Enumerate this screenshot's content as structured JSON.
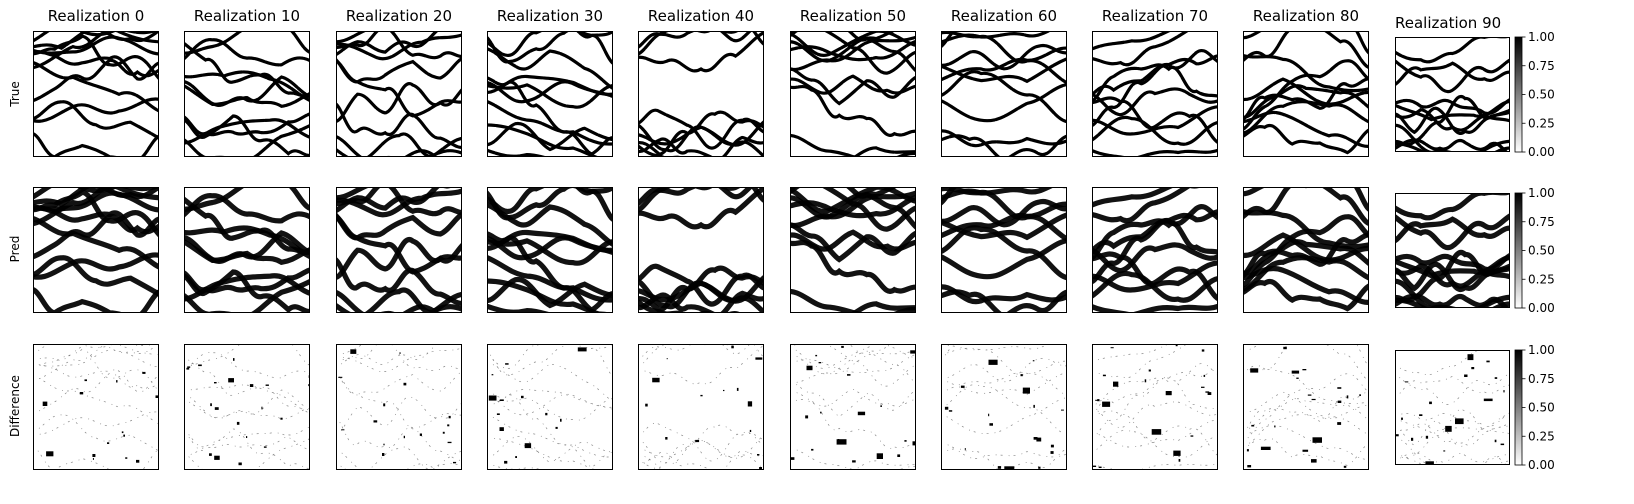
{
  "chart_data": {
    "type": "heatmap",
    "colormap": "gray_r",
    "vmin": 0,
    "vmax": 1,
    "columns": [
      "Realization 0",
      "Realization 10",
      "Realization 20",
      "Realization 30",
      "Realization 40",
      "Realization 50",
      "Realization 60",
      "Realization 70",
      "Realization 80",
      "Realization 90"
    ],
    "rows": [
      "True",
      "Pred",
      "Difference"
    ],
    "colorbar_ticks": [
      "0.00",
      "0.25",
      "0.50",
      "0.75",
      "1.00"
    ],
    "colorbar_tick_values": [
      0,
      0.25,
      0.5,
      0.75,
      1.0
    ]
  }
}
